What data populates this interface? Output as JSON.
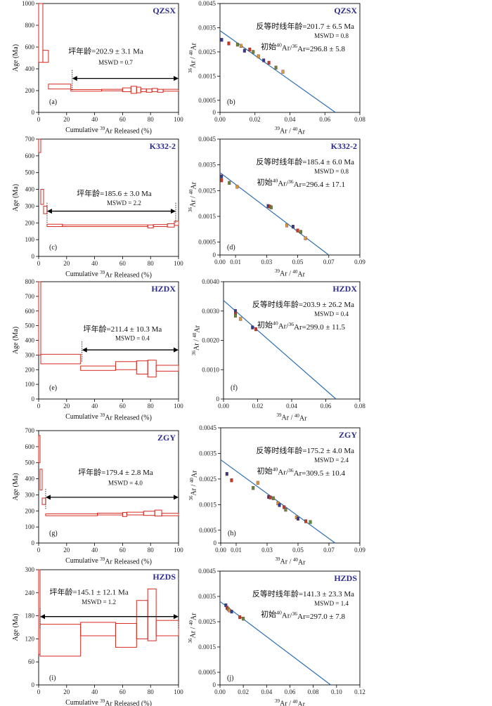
{
  "page": {
    "caption": ""
  },
  "chart_data": [
    {
      "panel": "(a)",
      "type": "step-plateau",
      "sample": "QZSX",
      "title": "",
      "xlabel": "Cumulative ³⁹Ar Released (%)",
      "ylabel": "Age (Ma)",
      "xlim": [
        0,
        100
      ],
      "ylim": [
        0,
        1000
      ],
      "xticks": [
        0,
        20,
        40,
        60,
        80,
        100
      ],
      "yticks": [
        0,
        200,
        400,
        600,
        800,
        1000
      ],
      "steps": [
        {
          "x0": 0,
          "x1": 3,
          "lo": 460,
          "hi": 1000
        },
        {
          "x0": 3,
          "x1": 7,
          "lo": 460,
          "hi": 570
        },
        {
          "x0": 7,
          "x1": 23,
          "lo": 215,
          "hi": 260
        },
        {
          "x0": 23,
          "x1": 45,
          "lo": 195,
          "hi": 210
        },
        {
          "x0": 45,
          "x1": 60,
          "lo": 198,
          "hi": 212
        },
        {
          "x0": 60,
          "x1": 66,
          "lo": 190,
          "hi": 225
        },
        {
          "x0": 66,
          "x1": 70,
          "lo": 175,
          "hi": 240
        },
        {
          "x0": 70,
          "x1": 73,
          "lo": 180,
          "hi": 232
        },
        {
          "x0": 73,
          "x1": 77,
          "lo": 190,
          "hi": 215
        },
        {
          "x0": 77,
          "x1": 81,
          "lo": 185,
          "hi": 215
        },
        {
          "x0": 81,
          "x1": 85,
          "lo": 190,
          "hi": 220
        },
        {
          "x0": 85,
          "x1": 89,
          "lo": 185,
          "hi": 212
        },
        {
          "x0": 89,
          "x1": 100,
          "lo": 195,
          "hi": 212
        }
      ],
      "plateau": {
        "x0": 24,
        "x1": 100,
        "y": 312
      },
      "annotation": {
        "line1": "坪年龄=202.9 ± 3.1 Ma",
        "line2": "MSWD = 0.7",
        "x": 48,
        "y1": 540,
        "y2": 440
      }
    },
    {
      "panel": "(b)",
      "type": "scatter-isochron",
      "sample": "QZSX",
      "title": "",
      "xlabel": "³⁹Ar / ⁴⁰Ar",
      "ylabel": "³⁶Ar / ⁴⁰Ar",
      "xlim": [
        0,
        0.08
      ],
      "ylim": [
        0,
        0.0045
      ],
      "xticks": [
        0.0,
        0.02,
        0.04,
        0.06,
        0.08
      ],
      "xtickfmt": 2,
      "yticks": [
        0,
        0.0005,
        0.0015,
        0.0025,
        0.0035,
        0.0045
      ],
      "line": [
        [
          0,
          0.00338
        ],
        [
          0.066,
          0
        ]
      ],
      "points": [
        [
          0.001,
          0.003
        ],
        [
          0.005,
          0.00285
        ],
        [
          0.01,
          0.0028
        ],
        [
          0.012,
          0.00275
        ],
        [
          0.014,
          0.00255
        ],
        [
          0.017,
          0.0026
        ],
        [
          0.019,
          0.0025
        ],
        [
          0.022,
          0.00232
        ],
        [
          0.025,
          0.00215
        ],
        [
          0.028,
          0.00205
        ],
        [
          0.032,
          0.00185
        ],
        [
          0.036,
          0.00168
        ]
      ],
      "annotation": {
        "line1": "反等时线年龄=201.7 ± 6.5 Ma",
        "line2": "MSWD = 0.8",
        "line3": "初始⁴⁰Ar/³⁶Ar=296.8 ± 5.8"
      }
    },
    {
      "panel": "(c)",
      "type": "step-plateau",
      "sample": "K332-2",
      "title": "",
      "xlabel": "Cumulative ³⁹Ar Released (%)",
      "ylabel": "Age (Ma)",
      "xlim": [
        0,
        100
      ],
      "ylim": [
        0,
        700
      ],
      "xticks": [
        0,
        20,
        40,
        60,
        80,
        100
      ],
      "yticks": [
        0,
        100,
        200,
        300,
        400,
        500,
        600,
        700
      ],
      "steps": [
        {
          "x0": 0,
          "x1": 1.5,
          "lo": 620,
          "hi": 700
        },
        {
          "x0": 1.5,
          "x1": 3.5,
          "lo": 310,
          "hi": 400
        },
        {
          "x0": 3.5,
          "x1": 6,
          "lo": 255,
          "hi": 300
        },
        {
          "x0": 6,
          "x1": 17,
          "lo": 178,
          "hi": 192
        },
        {
          "x0": 17,
          "x1": 78,
          "lo": 178,
          "hi": 188
        },
        {
          "x0": 78,
          "x1": 82,
          "lo": 170,
          "hi": 188
        },
        {
          "x0": 82,
          "x1": 92,
          "lo": 178,
          "hi": 190
        },
        {
          "x0": 92,
          "x1": 97,
          "lo": 175,
          "hi": 195
        },
        {
          "x0": 97,
          "x1": 100,
          "lo": 185,
          "hi": 210
        }
      ],
      "plateau": {
        "x0": 6,
        "x1": 98,
        "y": 270
      },
      "annotation": {
        "line1": "坪年龄=185.6 ± 3.0 Ma",
        "line2": "MSWD = 2.2",
        "x": 54,
        "y1": 360,
        "y2": 305
      }
    },
    {
      "panel": "(d)",
      "type": "scatter-isochron",
      "sample": "K332-2",
      "title": "",
      "xlabel": "³⁹Ar / ⁴⁰Ar",
      "ylabel": "³⁶Ar / ⁴⁰Ar",
      "xlim": [
        0,
        0.09
      ],
      "ylim": [
        0,
        0.0045
      ],
      "xticks": [
        0,
        0.01,
        0.03,
        0.05,
        0.07,
        0.09
      ],
      "xtickfmt": 2,
      "yticks": [
        0,
        0.0005,
        0.0015,
        0.0025,
        0.0035,
        0.0045
      ],
      "line": [
        [
          0,
          0.0032
        ],
        [
          0.07,
          0
        ]
      ],
      "points": [
        [
          0.001,
          0.00305
        ],
        [
          0.001,
          0.0029
        ],
        [
          0.006,
          0.0028
        ],
        [
          0.011,
          0.00265
        ],
        [
          0.031,
          0.0019
        ],
        [
          0.032,
          0.00188
        ],
        [
          0.033,
          0.00185
        ],
        [
          0.043,
          0.00115
        ],
        [
          0.047,
          0.0011
        ],
        [
          0.05,
          0.00095
        ],
        [
          0.052,
          0.0009
        ],
        [
          0.055,
          0.00065
        ]
      ],
      "annotation": {
        "line1": "反等时线年龄=185.4 ± 6.0 Ma",
        "line2": "MSWD = 0.8",
        "line3": "初始⁴⁰Ar/³⁶Ar=296.4 ± 17.1"
      }
    },
    {
      "panel": "(e)",
      "type": "step-plateau",
      "sample": "HZDX",
      "title": "",
      "xlabel": "Cumulative ³⁹Ar Released (%)",
      "ylabel": "Age (Ma)",
      "xlim": [
        0,
        100
      ],
      "ylim": [
        0,
        800
      ],
      "xticks": [
        0,
        20,
        40,
        60,
        80,
        100
      ],
      "yticks": [
        0,
        100,
        200,
        300,
        400,
        500,
        600,
        700,
        800
      ],
      "steps": [
        {
          "x0": 0,
          "x1": 1.5,
          "lo": 300,
          "hi": 800
        },
        {
          "x0": 1.5,
          "x1": 30,
          "lo": 240,
          "hi": 305
        },
        {
          "x0": 30,
          "x1": 55,
          "lo": 195,
          "hi": 225
        },
        {
          "x0": 55,
          "x1": 70,
          "lo": 200,
          "hi": 255
        },
        {
          "x0": 70,
          "x1": 78,
          "lo": 170,
          "hi": 260
        },
        {
          "x0": 78,
          "x1": 84,
          "lo": 150,
          "hi": 265
        },
        {
          "x0": 84,
          "x1": 100,
          "lo": 190,
          "hi": 230
        }
      ],
      "plateau": {
        "x0": 31,
        "x1": 100,
        "y": 335
      },
      "annotation": {
        "line1": "坪年龄=211.4 ± 10.3 Ma",
        "line2": "MSWD = 0.4",
        "x": 60,
        "y1": 460,
        "y2": 400
      }
    },
    {
      "panel": "(f)",
      "type": "scatter-isochron",
      "sample": "HZDX",
      "title": "",
      "xlabel": "³⁹Ar / ⁴⁰Ar",
      "ylabel": "³⁶Ar / ⁴⁰Ar",
      "xlim": [
        0,
        0.08
      ],
      "ylim": [
        0,
        0.004
      ],
      "xticks": [
        0.0,
        0.02,
        0.04,
        0.06,
        0.08
      ],
      "xtickfmt": 2,
      "yticks": [
        0,
        0.001,
        0.002,
        0.003,
        0.004
      ],
      "line": [
        [
          0,
          0.00336
        ],
        [
          0.066,
          0
        ]
      ],
      "points": [
        [
          0.007,
          0.003
        ],
        [
          0.007,
          0.0029
        ],
        [
          0.007,
          0.00284
        ],
        [
          0.01,
          0.00273
        ],
        [
          0.017,
          0.00244
        ],
        [
          0.019,
          0.00238
        ]
      ],
      "annotation": {
        "line1": "反等时线年龄=203.9 ± 26.2 Ma",
        "line2": "MSWD = 0.4",
        "line3": "初始⁴⁰Ar/³⁶Ar=299.0 ± 11.5"
      }
    },
    {
      "panel": "(g)",
      "type": "step-plateau",
      "sample": "ZGY",
      "title": "",
      "xlabel": "Cumulative ³⁹Ar Released (%)",
      "ylabel": "Age (Ma)",
      "xlim": [
        0,
        100
      ],
      "ylim": [
        0,
        700
      ],
      "xticks": [
        0,
        20,
        40,
        60,
        80,
        100
      ],
      "yticks": [
        0,
        100,
        200,
        300,
        400,
        500,
        600,
        700
      ],
      "steps": [
        {
          "x0": 0,
          "x1": 1,
          "lo": 500,
          "hi": 670
        },
        {
          "x0": 1,
          "x1": 2.5,
          "lo": 330,
          "hi": 460
        },
        {
          "x0": 2.5,
          "x1": 5,
          "lo": 240,
          "hi": 280
        },
        {
          "x0": 5,
          "x1": 42,
          "lo": 170,
          "hi": 182
        },
        {
          "x0": 42,
          "x1": 60,
          "lo": 175,
          "hi": 186
        },
        {
          "x0": 60,
          "x1": 63,
          "lo": 165,
          "hi": 190
        },
        {
          "x0": 63,
          "x1": 75,
          "lo": 175,
          "hi": 192
        },
        {
          "x0": 75,
          "x1": 83,
          "lo": 172,
          "hi": 198
        },
        {
          "x0": 83,
          "x1": 88,
          "lo": 168,
          "hi": 205
        },
        {
          "x0": 88,
          "x1": 100,
          "lo": 170,
          "hi": 185
        }
      ],
      "plateau": {
        "x0": 5,
        "x1": 100,
        "y": 285
      },
      "annotation": {
        "line1": "坪年龄=179.4 ± 2.8 Ma",
        "line2": "MSWD = 4.0",
        "x": 55,
        "y1": 425,
        "y2": 360
      }
    },
    {
      "panel": "(h)",
      "type": "scatter-isochron",
      "sample": "ZGY",
      "title": "",
      "xlabel": "³⁹Ar / ⁴⁰Ar",
      "ylabel": "³⁶Ar / ⁴⁰Ar",
      "xlim": [
        0,
        0.09
      ],
      "ylim": [
        0,
        0.0045
      ],
      "xticks": [
        0,
        0.01,
        0.03,
        0.05,
        0.07,
        0.09
      ],
      "xtickfmt": 2,
      "yticks": [
        0,
        0.0005,
        0.0015,
        0.0025,
        0.0035,
        0.0045
      ],
      "line": [
        [
          0,
          0.00325
        ],
        [
          0.074,
          0
        ]
      ],
      "points": [
        [
          0.004,
          0.0027
        ],
        [
          0.007,
          0.00245
        ],
        [
          0.021,
          0.00215
        ],
        [
          0.024,
          0.00235
        ],
        [
          0.031,
          0.0018
        ],
        [
          0.032,
          0.00178
        ],
        [
          0.034,
          0.00175
        ],
        [
          0.037,
          0.00155
        ],
        [
          0.038,
          0.00148
        ],
        [
          0.041,
          0.0014
        ],
        [
          0.042,
          0.0013
        ],
        [
          0.049,
          0.001
        ],
        [
          0.05,
          0.00095
        ],
        [
          0.055,
          0.00085
        ],
        [
          0.058,
          0.00082
        ]
      ],
      "annotation": {
        "line1": "反等时线年龄=175.2 ± 4.0 Ma",
        "line2": "MSWD = 2.4",
        "line3": "初始⁴⁰Ar/³⁶Ar=309.5 ± 10.4"
      }
    },
    {
      "panel": "(i)",
      "type": "step-plateau",
      "sample": "HZDS",
      "title": "",
      "xlabel": "Cumulative ³⁹Ar Released (%)",
      "ylabel": "Age (Ma)",
      "xlim": [
        0,
        100
      ],
      "ylim": [
        0,
        300
      ],
      "xticks": [
        0,
        20,
        40,
        60,
        80,
        100
      ],
      "yticks": [
        0,
        60,
        120,
        180,
        240,
        300
      ],
      "steps": [
        {
          "x0": 0,
          "x1": 1,
          "lo": 80,
          "hi": 300
        },
        {
          "x0": 1,
          "x1": 30,
          "lo": 75,
          "hi": 158
        },
        {
          "x0": 30,
          "x1": 55,
          "lo": 128,
          "hi": 163
        },
        {
          "x0": 55,
          "x1": 70,
          "lo": 98,
          "hi": 160
        },
        {
          "x0": 70,
          "x1": 78,
          "lo": 120,
          "hi": 220
        },
        {
          "x0": 78,
          "x1": 84,
          "lo": 115,
          "hi": 250
        },
        {
          "x0": 84,
          "x1": 100,
          "lo": 128,
          "hi": 168
        }
      ],
      "plateau": {
        "x0": 1,
        "x1": 100,
        "y": 178
      },
      "annotation": {
        "line1": "坪年龄=145.1 ± 12.1 Ma",
        "line2": "MSWD = 1.2",
        "x": 36,
        "y1": 235,
        "y2": 210
      }
    },
    {
      "panel": "(j)",
      "type": "scatter-isochron",
      "sample": "HZDS",
      "title": "",
      "xlabel": "³⁹Ar / ⁴⁰Ar",
      "ylabel": "³⁶Ar / ⁴⁰Ar",
      "xlim": [
        0,
        0.12
      ],
      "ylim": [
        0,
        0.0045
      ],
      "xticks": [
        0,
        0.02,
        0.04,
        0.06,
        0.08,
        0.1,
        0.12
      ],
      "xtickfmt": 2,
      "yticks": [
        0,
        0.0005,
        0.0015,
        0.0025,
        0.0035,
        0.0045
      ],
      "line": [
        [
          0,
          0.0033
        ],
        [
          0.095,
          0
        ]
      ],
      "points": [
        [
          0.005,
          0.00315
        ],
        [
          0.006,
          0.00305
        ],
        [
          0.007,
          0.003
        ],
        [
          0.008,
          0.00295
        ],
        [
          0.01,
          0.0029
        ],
        [
          0.017,
          0.00268
        ],
        [
          0.02,
          0.00262
        ]
      ],
      "annotation": {
        "line1": "反等时线年龄=141.3 ± 23.3 Ma",
        "line2": "MSWD = 1.4",
        "line3": "初始⁴⁰Ar/³⁶Ar=297.0 ± 7.8"
      }
    }
  ],
  "colors": {
    "step_stroke": "#d62a20",
    "fit_line": "#2f6fb0",
    "sample_label": "#2b2b8c",
    "marker_colors": [
      "#2c3e8f",
      "#c0392b",
      "#5a8f3a",
      "#d99a3c"
    ]
  }
}
